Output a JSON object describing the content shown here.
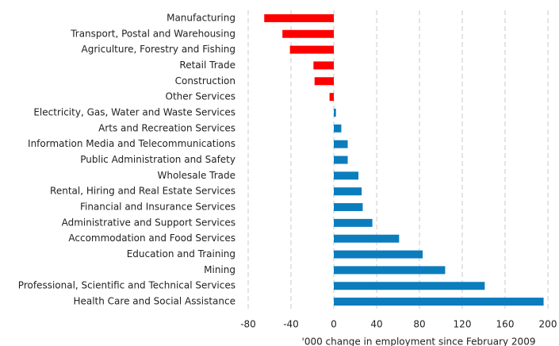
{
  "chart_data": {
    "type": "hbar",
    "categories": [
      "Manufacturing",
      "Transport, Postal and Warehousing",
      "Agriculture, Forestry and Fishing",
      "Retail Trade",
      "Construction",
      "Other Services",
      "Electricity, Gas, Water and Waste Services",
      "Arts and Recreation Services",
      "Information Media and Telecommunications",
      "Public Administration and Safety",
      "Wholesale Trade",
      "Rental, Hiring and Real Estate Services",
      "Financial and Insurance Services",
      "Administrative and Support Services",
      "Accommodation and Food Services",
      "Education and Training",
      "Mining",
      "Professional, Scientific and Technical Services",
      "Health Care and Social Assistance"
    ],
    "values": [
      -65,
      -48,
      -41,
      -19,
      -18,
      -4,
      2,
      7,
      13,
      13,
      23,
      26,
      27,
      36,
      61,
      83,
      104,
      141,
      196
    ],
    "color_positive": "#0b7dbd",
    "color_negative": "#ff0000",
    "xlim": [
      -80,
      200
    ],
    "xticks": [
      -80,
      -40,
      0,
      40,
      80,
      120,
      160,
      200
    ],
    "grid": true,
    "x_label": "'000 change in employment since February 2009"
  }
}
